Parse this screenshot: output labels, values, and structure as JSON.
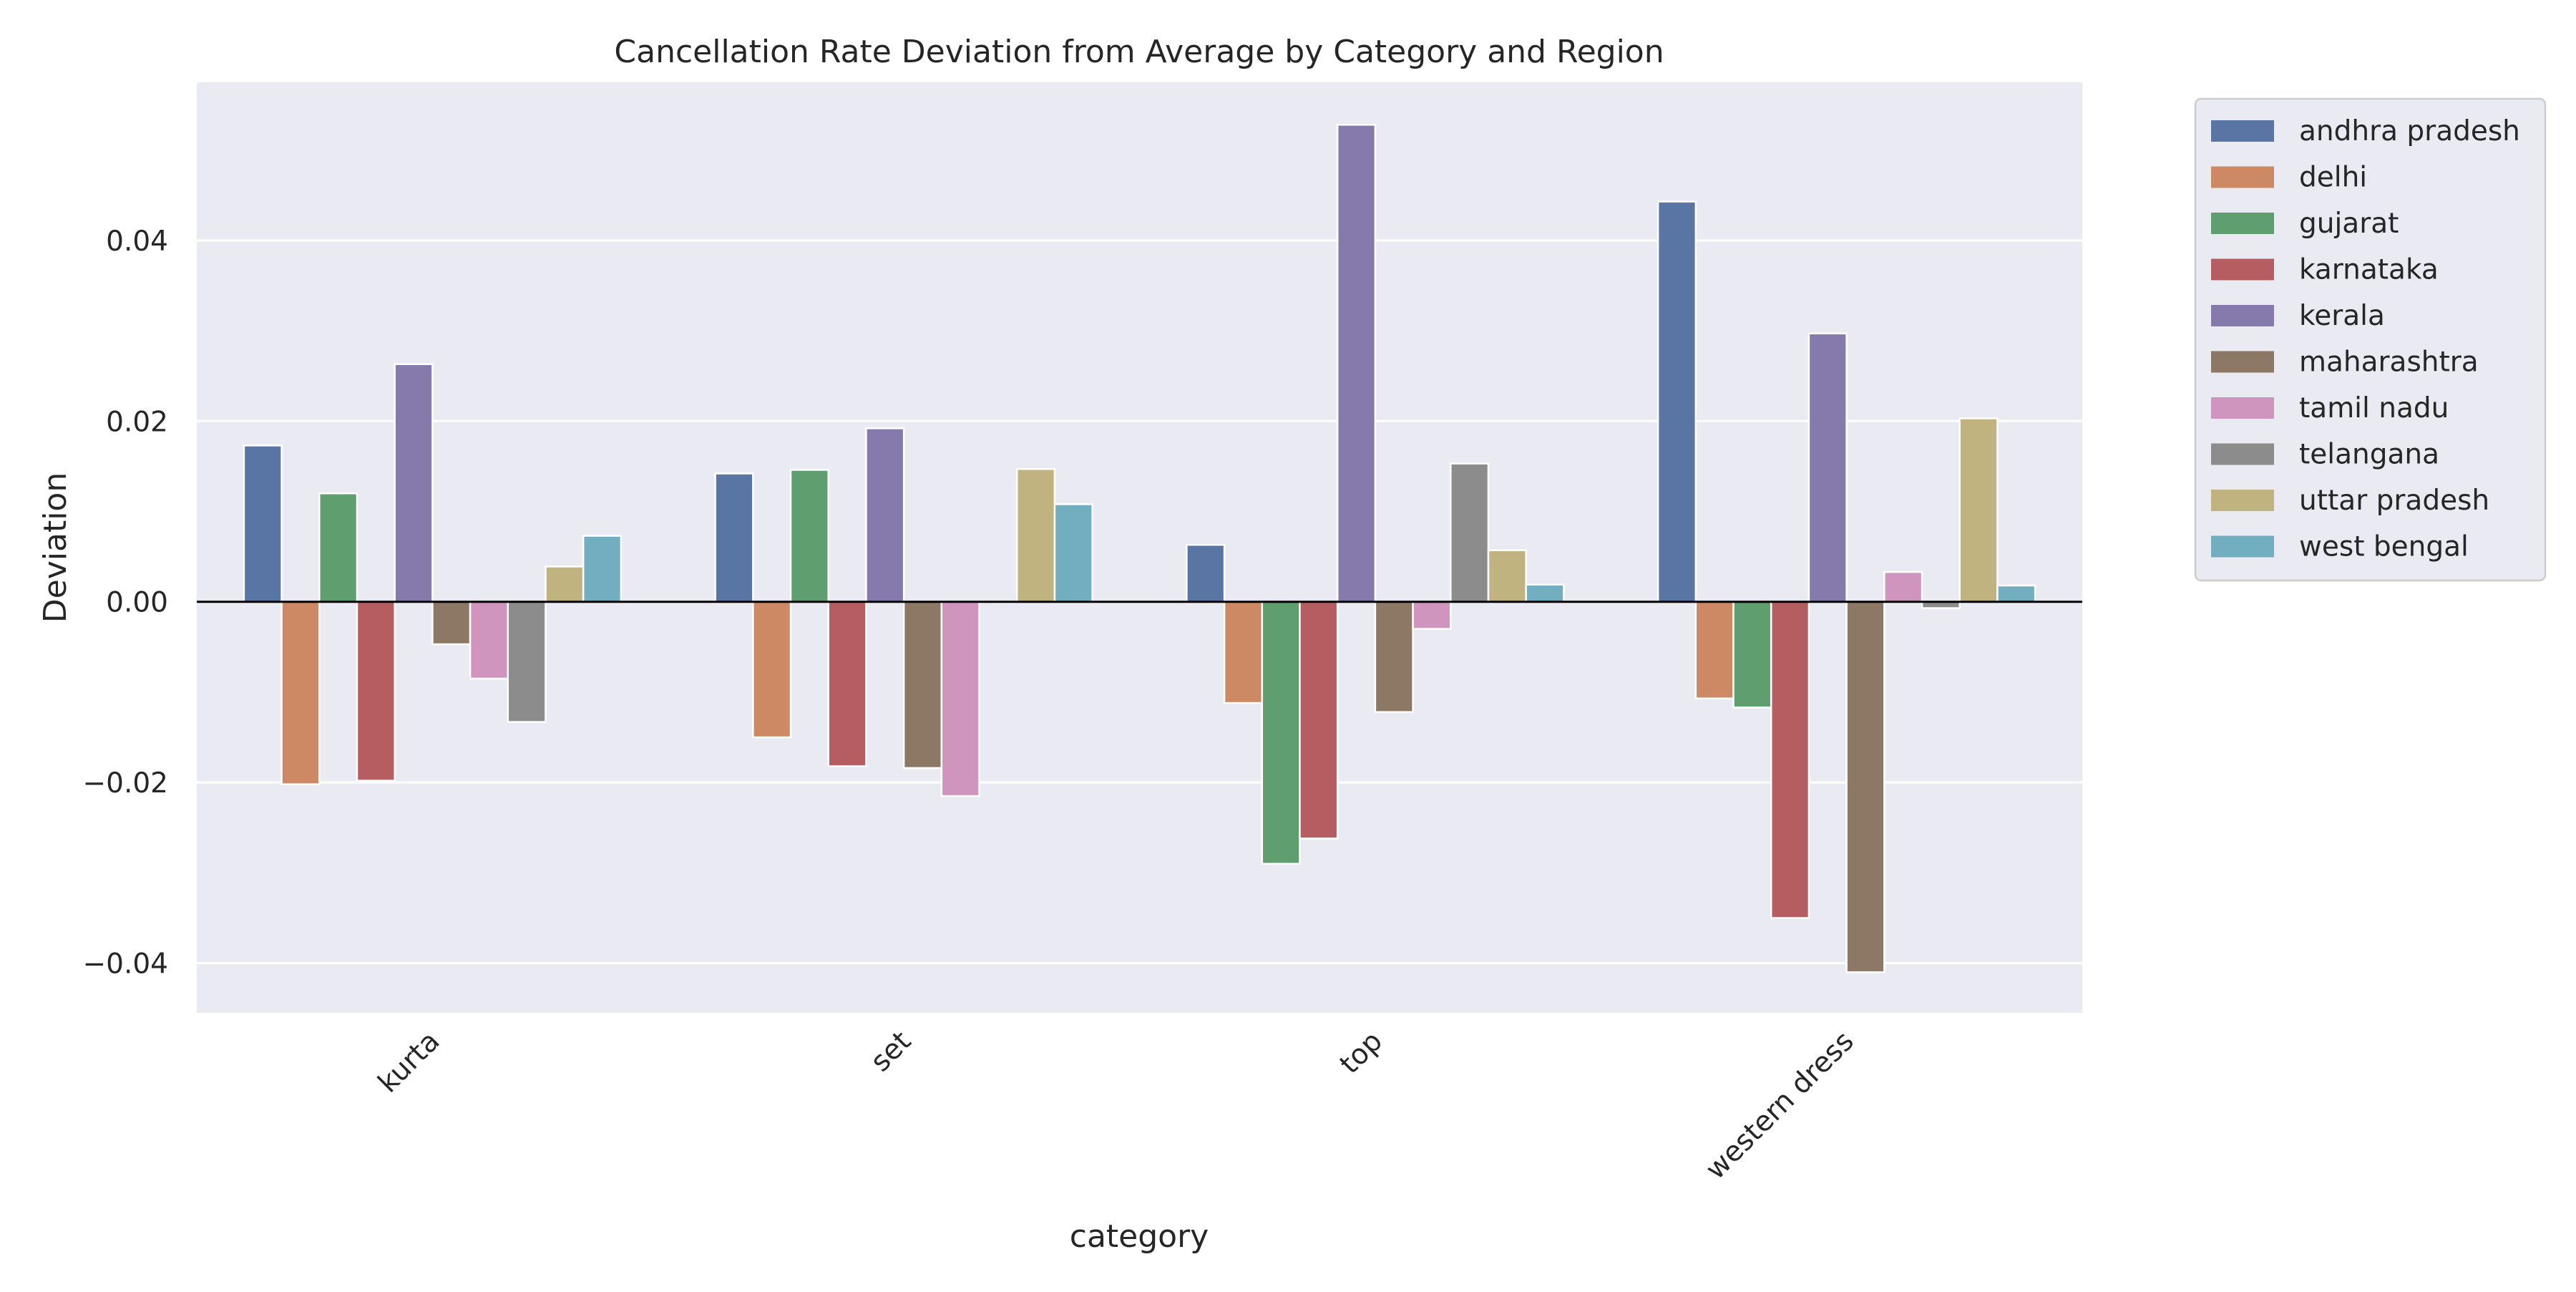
{
  "chart_data": {
    "type": "bar",
    "title": "Cancellation Rate Deviation from Average by Category and Region",
    "xlabel": "category",
    "ylabel": "Deviation",
    "categories": [
      "kurta",
      "set",
      "top",
      "western dress"
    ],
    "ylim": [
      -0.0455,
      0.0575
    ],
    "yticks": [
      -0.04,
      -0.02,
      0.0,
      0.02,
      0.04
    ],
    "ytick_labels": [
      "−0.04",
      "−0.02",
      "0.00",
      "0.02",
      "0.04"
    ],
    "grid": true,
    "zero_line": true,
    "legend_position": "outside-top-right",
    "series": [
      {
        "name": "andhra pradesh",
        "color": "#5975a4",
        "values": [
          0.0173,
          0.0142,
          0.0063,
          0.0443
        ]
      },
      {
        "name": "delhi",
        "color": "#cc8963",
        "values": [
          -0.0202,
          -0.015,
          -0.0112,
          -0.0107
        ]
      },
      {
        "name": "gujarat",
        "color": "#5f9e6e",
        "values": [
          0.012,
          0.0146,
          -0.029,
          -0.0117
        ]
      },
      {
        "name": "karnataka",
        "color": "#b55d60",
        "values": [
          -0.0198,
          -0.0182,
          -0.0262,
          -0.035
        ]
      },
      {
        "name": "kerala",
        "color": "#857aab",
        "values": [
          0.0263,
          0.0192,
          0.0528,
          0.0297
        ]
      },
      {
        "name": "maharashtra",
        "color": "#8d7866",
        "values": [
          -0.0047,
          -0.0184,
          -0.0122,
          -0.041
        ]
      },
      {
        "name": "tamil nadu",
        "color": "#d095bf",
        "values": [
          -0.0085,
          -0.0215,
          -0.003,
          0.0033
        ]
      },
      {
        "name": "telangana",
        "color": "#8c8c8c",
        "values": [
          -0.0133,
          0.0,
          0.0153,
          -0.0007
        ]
      },
      {
        "name": "uttar pradesh",
        "color": "#c1b37f",
        "values": [
          0.0039,
          0.0147,
          0.0057,
          0.0203
        ]
      },
      {
        "name": "west bengal",
        "color": "#71aec0",
        "values": [
          0.0073,
          0.0108,
          0.0019,
          0.0018
        ]
      }
    ],
    "colors": {
      "plot_background": "#eaeaf2",
      "grid": "#ffffff",
      "zero_line": "#000000",
      "text": "#262626"
    }
  }
}
